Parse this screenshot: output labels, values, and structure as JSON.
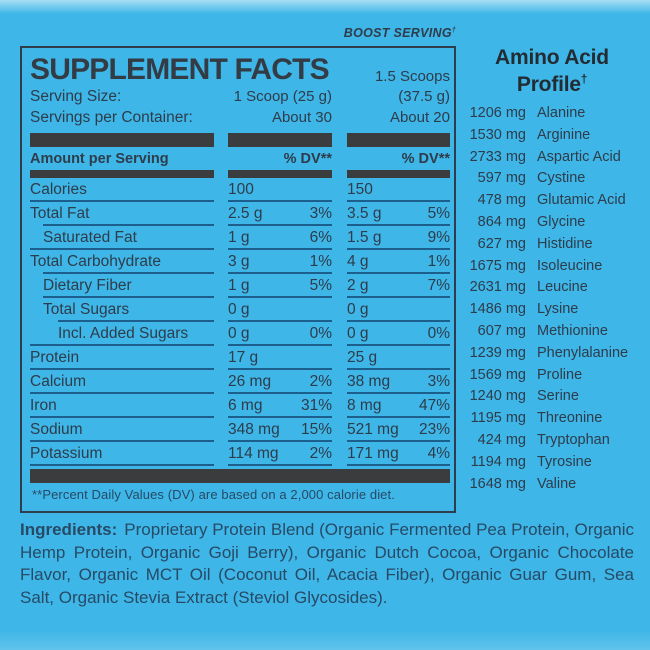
{
  "boost": {
    "label": "BOOST SERVING",
    "dagger": "†"
  },
  "panel": {
    "title": "SUPPLEMENT FACTS",
    "scoops_col2": "1.5 Scoops",
    "serving_size_label": "Serving Size:",
    "serving_size_col1": "1 Scoop (25 g)",
    "serving_size_col2": "(37.5 g)",
    "servings_label": "Servings per Container:",
    "servings_col1": "About 30",
    "servings_col2": "About 20",
    "header": {
      "amount_label": "Amount per Serving",
      "dv_label": "% DV**"
    },
    "rows": [
      {
        "label": "Calories",
        "indent": 0,
        "amt1": "100",
        "dv1": "",
        "amt2": "150",
        "dv2": ""
      },
      {
        "label": "Total Fat",
        "indent": 0,
        "amt1": "2.5 g",
        "dv1": "3%",
        "amt2": "3.5 g",
        "dv2": "5%"
      },
      {
        "label": "Saturated Fat",
        "indent": 1,
        "amt1": "1 g",
        "dv1": "6%",
        "amt2": "1.5 g",
        "dv2": "9%"
      },
      {
        "label": "Total Carbohydrate",
        "indent": 0,
        "amt1": "3 g",
        "dv1": "1%",
        "amt2": "4 g",
        "dv2": "1%"
      },
      {
        "label": "Dietary Fiber",
        "indent": 1,
        "amt1": "1 g",
        "dv1": "5%",
        "amt2": "2 g",
        "dv2": "7%"
      },
      {
        "label": "Total Sugars",
        "indent": 1,
        "amt1": "0 g",
        "dv1": "",
        "amt2": "0 g",
        "dv2": ""
      },
      {
        "label": "Incl. Added Sugars",
        "indent": 2,
        "amt1": "0 g",
        "dv1": "0%",
        "amt2": "0 g",
        "dv2": "0%"
      },
      {
        "label": "Protein",
        "indent": 0,
        "amt1": "17 g",
        "dv1": "",
        "amt2": "25 g",
        "dv2": ""
      },
      {
        "label": "Calcium",
        "indent": 0,
        "amt1": "26 mg",
        "dv1": "2%",
        "amt2": "38 mg",
        "dv2": "3%"
      },
      {
        "label": "Iron",
        "indent": 0,
        "amt1": "6 mg",
        "dv1": "31%",
        "amt2": "8 mg",
        "dv2": "47%"
      },
      {
        "label": "Sodium",
        "indent": 0,
        "amt1": "348 mg",
        "dv1": "15%",
        "amt2": "521 mg",
        "dv2": "23%"
      },
      {
        "label": "Potassium",
        "indent": 0,
        "amt1": "114 mg",
        "dv1": "2%",
        "amt2": "171 mg",
        "dv2": "4%"
      }
    ],
    "footnote": "**Percent Daily Values (DV) are based on a 2,000 calorie diet."
  },
  "amino": {
    "title_line1": "Amino Acid",
    "title_line2": "Profile",
    "dagger": "†",
    "items": [
      {
        "amount": "1206 mg",
        "name": "Alanine"
      },
      {
        "amount": "1530 mg",
        "name": "Arginine"
      },
      {
        "amount": "2733 mg",
        "name": "Aspartic Acid"
      },
      {
        "amount": "597 mg",
        "name": "Cystine"
      },
      {
        "amount": "478 mg",
        "name": "Glutamic Acid"
      },
      {
        "amount": "864 mg",
        "name": "Glycine"
      },
      {
        "amount": "627 mg",
        "name": "Histidine"
      },
      {
        "amount": "1675 mg",
        "name": "Isoleucine"
      },
      {
        "amount": "2631 mg",
        "name": "Leucine"
      },
      {
        "amount": "1486 mg",
        "name": "Lysine"
      },
      {
        "amount": "607 mg",
        "name": "Methionine"
      },
      {
        "amount": "1239 mg",
        "name": "Phenylalanine"
      },
      {
        "amount": "1569 mg",
        "name": "Proline"
      },
      {
        "amount": "1240 mg",
        "name": "Serine"
      },
      {
        "amount": "1195 mg",
        "name": "Threonine"
      },
      {
        "amount": "424 mg",
        "name": "Tryptophan"
      },
      {
        "amount": "1194 mg",
        "name": "Tyrosine"
      },
      {
        "amount": "1648 mg",
        "name": "Valine"
      }
    ]
  },
  "ingredients": {
    "label": "Ingredients:",
    "text": "Proprietary Protein Blend (Organic Fermented Pea Protein, Organic Hemp Protein, Organic Goji Berry), Organic Dutch Cocoa, Organic Chocolate Flavor, Organic MCT Oil (Coconut Oil, Acacia Fiber), Organic Guar Gum, Sea Salt, Organic Stevia Extract (Steviol Glycosides)."
  },
  "colors": {
    "background": "#3eb6e7",
    "bar": "#3b3c3e",
    "text": "#2e3c4b",
    "rule": "#1d5f8c",
    "ink_navy": "#274a66",
    "ink_black": "#232b33"
  }
}
